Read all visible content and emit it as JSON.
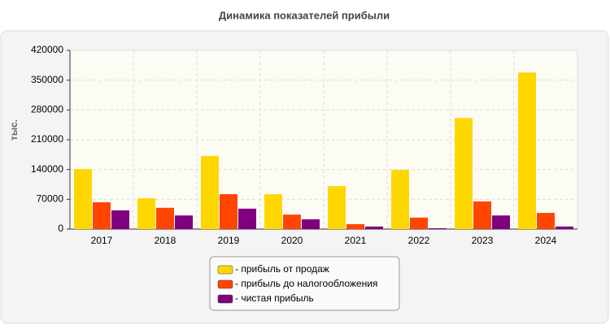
{
  "chart_data": {
    "type": "bar",
    "title": "Динамика показателей прибыли",
    "y_label": "тыс.",
    "categories": [
      "2017",
      "2018",
      "2019",
      "2020",
      "2021",
      "2022",
      "2023",
      "2024"
    ],
    "series": [
      {
        "name": "- прибыль от продаж",
        "color": "#ffd700",
        "values": [
          141000,
          72500,
          172000,
          82000,
          101000,
          139000,
          261000,
          368000
        ]
      },
      {
        "name": "- прибыль до налогообложения",
        "color": "#ff4500",
        "values": [
          63000,
          50000,
          82000,
          34000,
          11500,
          27000,
          65000,
          38000
        ]
      },
      {
        "name": "- чистая прибыль",
        "color": "#800080",
        "values": [
          44000,
          32000,
          48000,
          23000,
          6000,
          2000,
          32000,
          6000
        ]
      }
    ],
    "ylim": [
      0,
      420000
    ],
    "yticks": [
      0,
      70000,
      140000,
      210000,
      280000,
      350000,
      420000
    ],
    "grid": true
  }
}
